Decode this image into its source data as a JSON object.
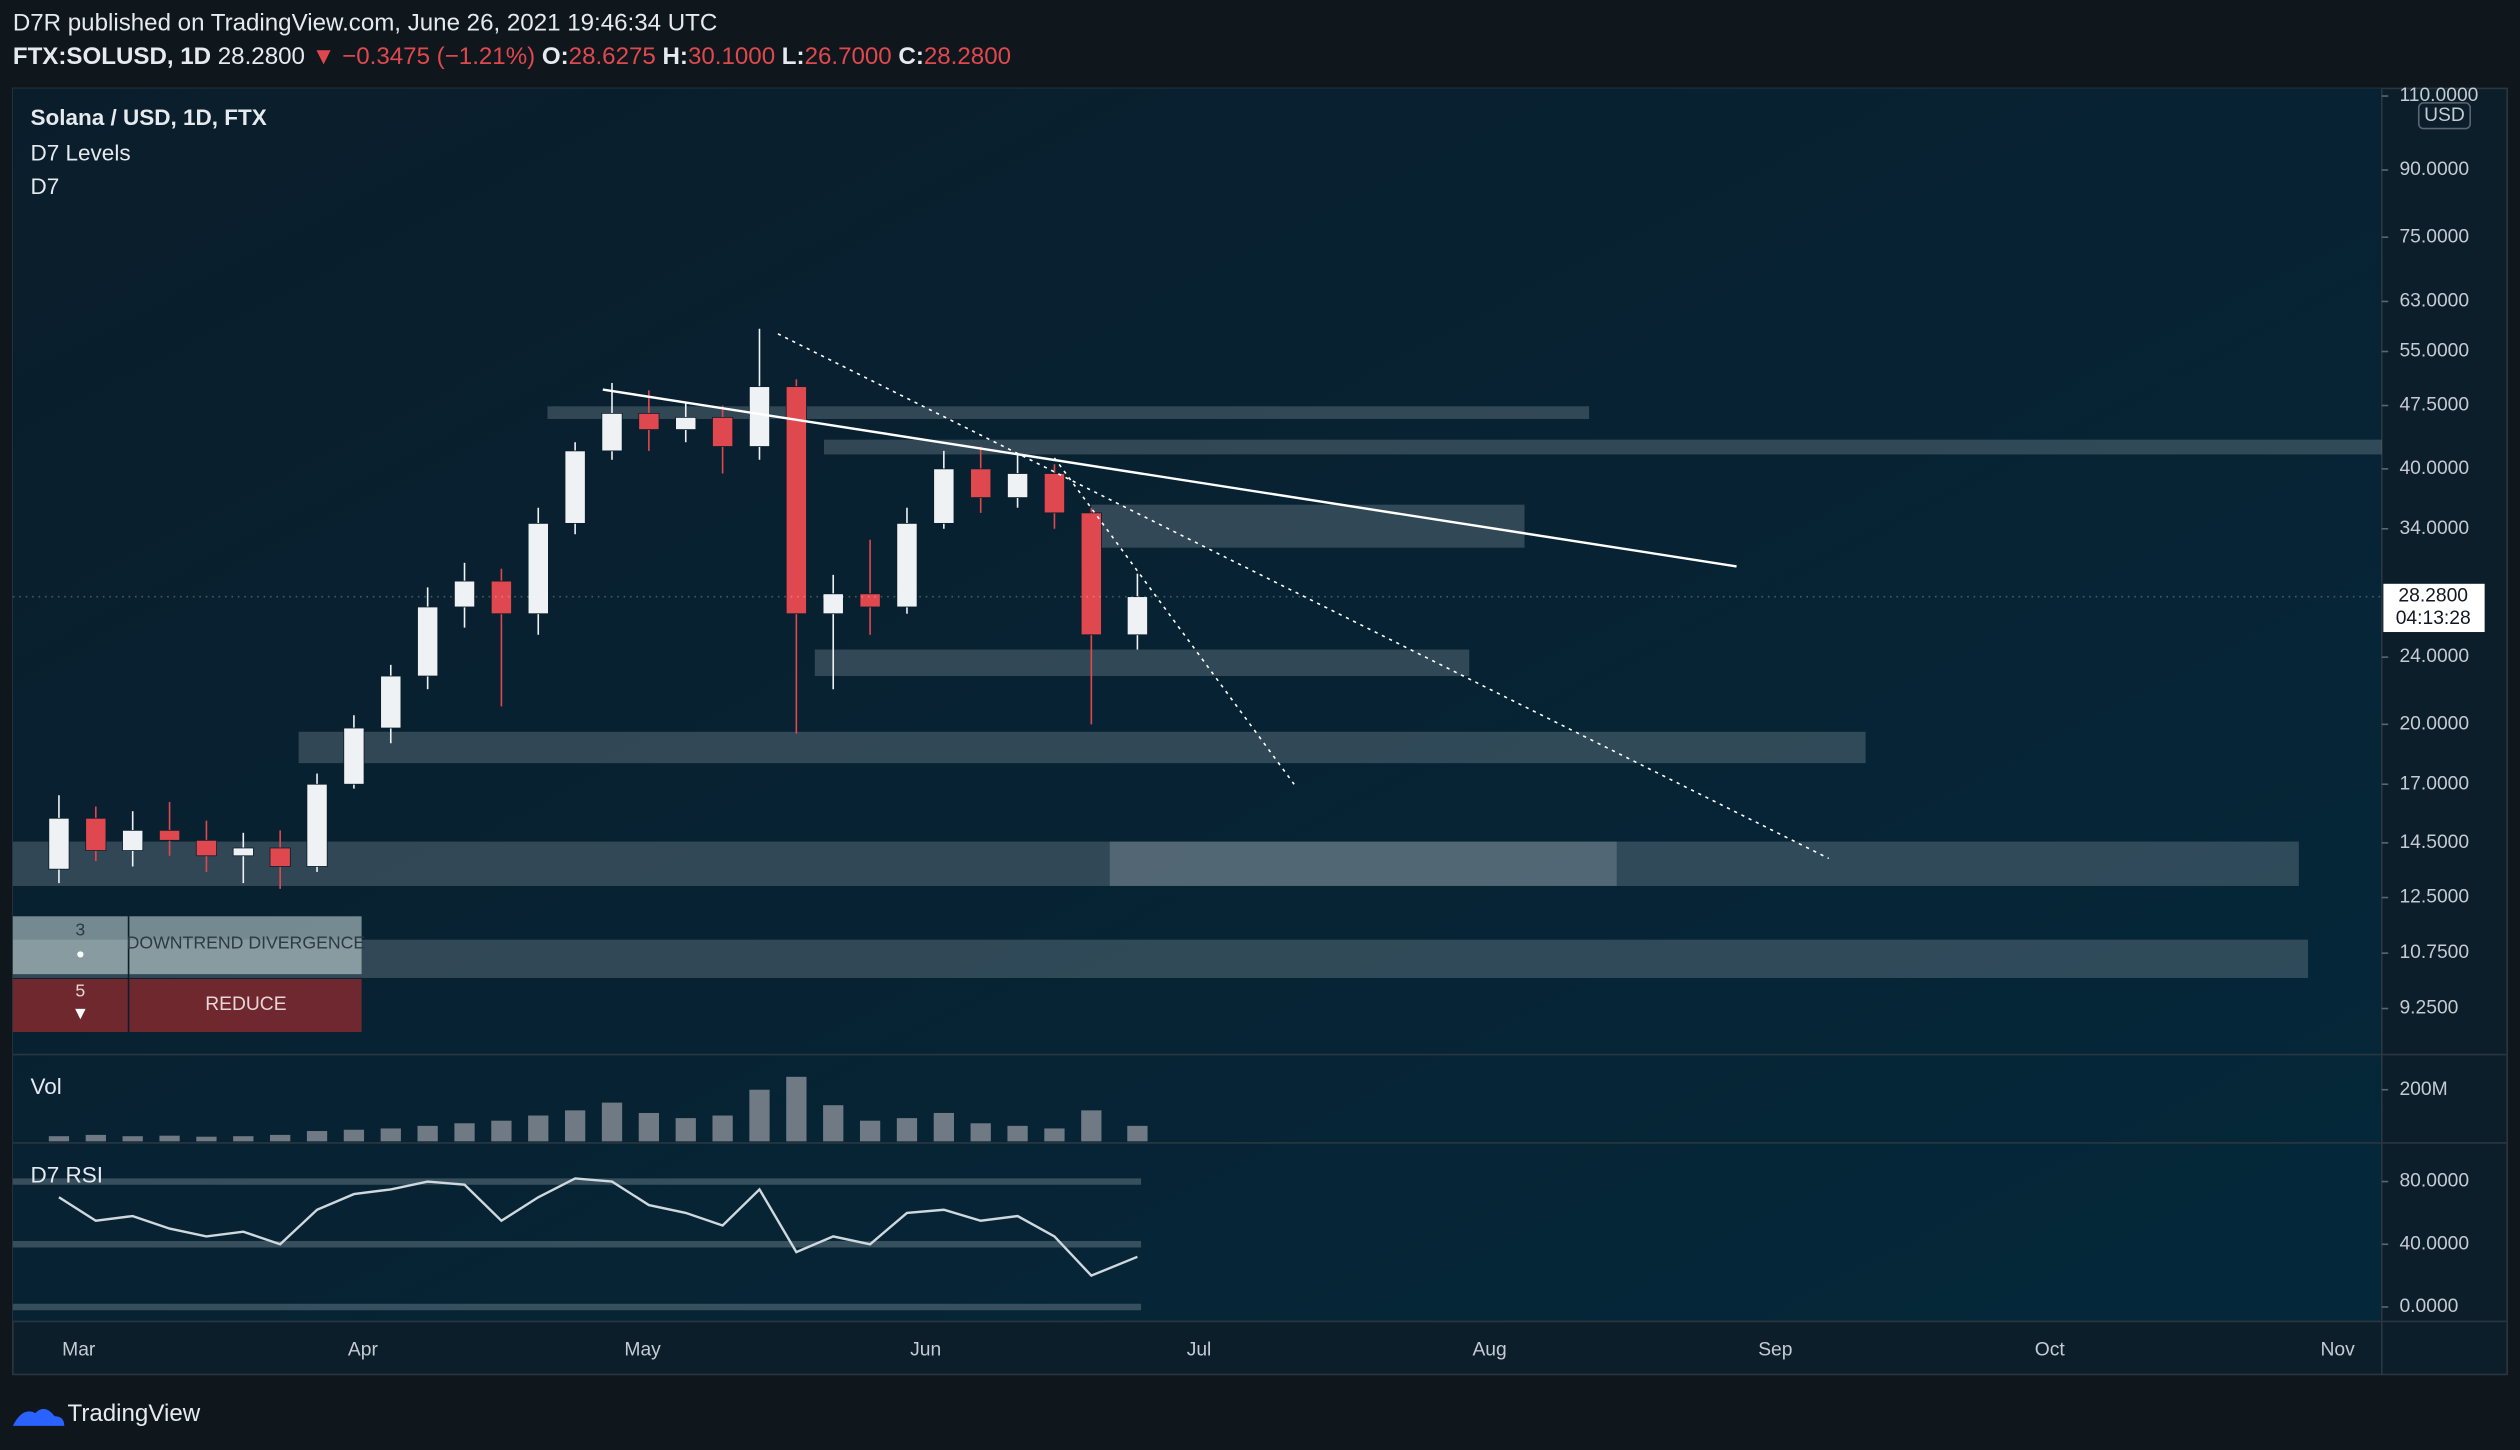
{
  "header": {
    "publisher": "D7R published on TradingView.com, June 26, 2021 19:46:34 UTC",
    "symbol": "FTX:SOLUSD, 1D",
    "last": "28.2800",
    "change": "▼ −0.3475 (−1.21%)",
    "o_label": "O:",
    "o": "28.6275",
    "h_label": "H:",
    "h": "30.1000",
    "l_label": "L:",
    "l": "26.7000",
    "c_label": "C:",
    "c": "28.2800"
  },
  "footer": {
    "brand": "TradingView"
  },
  "signals": [
    {
      "count": "3",
      "icon": "●",
      "text": "DOWNTREND DIVERGENCE"
    },
    {
      "count": "5",
      "icon": "▼",
      "text": "REDUCE"
    }
  ],
  "chart_data": [
    {
      "type": "candlestick",
      "title": "Solana / USD, 1D, FTX",
      "indicators": [
        "D7 Levels",
        "D7"
      ],
      "currency": "USD",
      "x": [
        "2021-03-01",
        "2021-03-05",
        "2021-03-09",
        "2021-03-13",
        "2021-03-17",
        "2021-03-21",
        "2021-03-25",
        "2021-03-29",
        "2021-04-02",
        "2021-04-06",
        "2021-04-10",
        "2021-04-14",
        "2021-04-18",
        "2021-04-22",
        "2021-04-26",
        "2021-04-30",
        "2021-05-04",
        "2021-05-08",
        "2021-05-12",
        "2021-05-16",
        "2021-05-20",
        "2021-05-24",
        "2021-05-28",
        "2021-06-01",
        "2021-06-05",
        "2021-06-09",
        "2021-06-13",
        "2021-06-17",
        "2021-06-21",
        "2021-06-26"
      ],
      "open": [
        13.5,
        15.5,
        14.2,
        15.0,
        14.6,
        14.0,
        14.3,
        13.6,
        17.0,
        19.8,
        22.8,
        27.5,
        29.5,
        27.0,
        34.5,
        42.0,
        46.5,
        44.5,
        46.0,
        42.5,
        50.0,
        27.0,
        28.5,
        27.5,
        34.5,
        40.0,
        37.0,
        39.5,
        35.5,
        25.5
      ],
      "high": [
        16.5,
        16.0,
        15.8,
        16.2,
        15.4,
        14.9,
        15.0,
        17.5,
        20.5,
        23.5,
        29.0,
        31.0,
        30.5,
        36.0,
        43.0,
        50.5,
        49.5,
        48.0,
        47.5,
        58.5,
        51.0,
        30.0,
        33.0,
        36.0,
        42.0,
        42.5,
        41.5,
        40.5,
        36.0,
        30.1
      ],
      "low": [
        13.0,
        13.8,
        13.6,
        14.0,
        13.4,
        13.0,
        12.8,
        13.4,
        16.8,
        19.0,
        22.0,
        26.0,
        21.0,
        25.5,
        33.5,
        41.0,
        42.0,
        43.0,
        39.5,
        41.0,
        19.5,
        22.0,
        25.5,
        27.0,
        34.0,
        35.5,
        36.0,
        34.0,
        20.0,
        24.5
      ],
      "close": [
        15.5,
        14.2,
        15.0,
        14.6,
        14.0,
        14.3,
        13.6,
        17.0,
        19.8,
        22.8,
        27.5,
        29.5,
        27.0,
        34.5,
        42.0,
        46.5,
        44.5,
        46.0,
        42.5,
        50.0,
        27.0,
        28.5,
        27.5,
        34.5,
        40.0,
        37.0,
        39.5,
        35.5,
        25.5,
        28.28
      ],
      "up_color": "#eef2f5",
      "down_color": "#e0484f",
      "log_scale": true,
      "ylim": [
        8.2,
        112.3
      ],
      "yticks": [
        {
          "value": 110,
          "label": "110.0000"
        },
        {
          "value": 90,
          "label": "90.0000"
        },
        {
          "value": 75,
          "label": "75.0000"
        },
        {
          "value": 63,
          "label": "63.0000"
        },
        {
          "value": 55,
          "label": "55.0000"
        },
        {
          "value": 47.5,
          "label": "47.5000"
        },
        {
          "value": 40,
          "label": "40.0000"
        },
        {
          "value": 34,
          "label": "34.0000"
        },
        {
          "value": 24,
          "label": "24.0000"
        },
        {
          "value": 20,
          "label": "20.0000"
        },
        {
          "value": 17,
          "label": "17.0000"
        },
        {
          "value": 14.5,
          "label": "14.5000"
        },
        {
          "value": 12.5,
          "label": "12.5000"
        },
        {
          "value": 10.75,
          "label": "10.7500"
        },
        {
          "value": 9.25,
          "label": "9.2500"
        }
      ],
      "xlim": [
        "2021-02-24",
        "2021-11-08"
      ],
      "xticks": [
        {
          "value": "2021-03-01",
          "label": "Mar"
        },
        {
          "value": "2021-04-01",
          "label": "Apr"
        },
        {
          "value": "2021-05-01",
          "label": "May"
        },
        {
          "value": "2021-06-01",
          "label": "Jun"
        },
        {
          "value": "2021-07-01",
          "label": "Jul"
        },
        {
          "value": "2021-08-01",
          "label": "Aug"
        },
        {
          "value": "2021-09-01",
          "label": "Sep"
        },
        {
          "value": "2021-10-01",
          "label": "Oct"
        },
        {
          "value": "2021-11-01",
          "label": "Nov"
        }
      ],
      "zones": [
        {
          "x": [
            "2021-04-23",
            "2021-08-14"
          ],
          "y": [
            45.8,
            47.4
          ]
        },
        {
          "x": [
            "2021-05-23",
            "2021-11-08"
          ],
          "y": [
            41.6,
            43.3
          ]
        },
        {
          "x": [
            "2021-06-21",
            "2021-08-07"
          ],
          "y": [
            32.3,
            36.3
          ]
        },
        {
          "x": [
            "2021-05-22",
            "2021-08-01"
          ],
          "y": [
            22.8,
            24.5
          ]
        },
        {
          "x": [
            "2021-03-27",
            "2021-09-13"
          ],
          "y": [
            18.0,
            19.6
          ]
        },
        {
          "x": [
            "2021-02-24",
            "2021-10-30"
          ],
          "y": [
            12.9,
            14.55
          ]
        },
        {
          "x": [
            "2021-06-23",
            "2021-08-17"
          ],
          "y": [
            12.9,
            14.55
          ]
        },
        {
          "x": [
            "2021-02-24",
            "2021-10-31"
          ],
          "y": [
            10.05,
            11.15
          ]
        }
      ],
      "zone_color": "#c8d2dc",
      "trendlines": [
        {
          "x": [
            "2021-04-29",
            "2021-08-30"
          ],
          "y": [
            49.6,
            30.7
          ],
          "style": "solid"
        },
        {
          "x": [
            "2021-05-18",
            "2021-09-09"
          ],
          "y": [
            57.7,
            13.9
          ],
          "style": "dotted"
        },
        {
          "x": [
            "2021-06-17",
            "2021-07-13"
          ],
          "y": [
            41.2,
            17.0
          ],
          "style": "dotted"
        }
      ],
      "price_label": {
        "value": 28.28,
        "label": "28.2800"
      },
      "countdown": "04:13:28"
    },
    {
      "type": "bar",
      "title": "Vol",
      "x": [
        "2021-03-01",
        "2021-03-05",
        "2021-03-09",
        "2021-03-13",
        "2021-03-17",
        "2021-03-21",
        "2021-03-25",
        "2021-03-29",
        "2021-04-02",
        "2021-04-06",
        "2021-04-10",
        "2021-04-14",
        "2021-04-18",
        "2021-04-22",
        "2021-04-26",
        "2021-04-30",
        "2021-05-04",
        "2021-05-08",
        "2021-05-12",
        "2021-05-16",
        "2021-05-20",
        "2021-05-24",
        "2021-05-28",
        "2021-06-01",
        "2021-06-05",
        "2021-06-09",
        "2021-06-13",
        "2021-06-17",
        "2021-06-21",
        "2021-06-26"
      ],
      "values": [
        20000000,
        25000000,
        20000000,
        22000000,
        18000000,
        20000000,
        25000000,
        40000000,
        45000000,
        50000000,
        60000000,
        70000000,
        80000000,
        100000000,
        120000000,
        150000000,
        110000000,
        90000000,
        100000000,
        200000000,
        250000000,
        140000000,
        80000000,
        90000000,
        110000000,
        70000000,
        60000000,
        50000000,
        120000000,
        60000000
      ],
      "color": "#8a9099",
      "ylim": [
        0,
        330000000
      ],
      "yticks": [
        {
          "value": 200000000,
          "label": "200M"
        }
      ]
    },
    {
      "type": "line",
      "title": "D7 RSI",
      "x": [
        "2021-03-01",
        "2021-03-05",
        "2021-03-09",
        "2021-03-13",
        "2021-03-17",
        "2021-03-21",
        "2021-03-25",
        "2021-03-29",
        "2021-04-02",
        "2021-04-06",
        "2021-04-10",
        "2021-04-14",
        "2021-04-18",
        "2021-04-22",
        "2021-04-26",
        "2021-04-30",
        "2021-05-04",
        "2021-05-08",
        "2021-05-12",
        "2021-05-16",
        "2021-05-20",
        "2021-05-24",
        "2021-05-28",
        "2021-06-01",
        "2021-06-05",
        "2021-06-09",
        "2021-06-13",
        "2021-06-17",
        "2021-06-21",
        "2021-06-26"
      ],
      "values": [
        70,
        55,
        58,
        50,
        45,
        48,
        40,
        62,
        72,
        75,
        80,
        78,
        55,
        70,
        82,
        80,
        65,
        60,
        52,
        75,
        35,
        45,
        40,
        60,
        62,
        55,
        58,
        45,
        20,
        32
      ],
      "color": "#cfd8dc",
      "ylim": [
        -9.2,
        103.6
      ],
      "yticks": [
        {
          "value": 80,
          "label": "80.0000"
        },
        {
          "value": 40,
          "label": "40.0000"
        },
        {
          "value": 0,
          "label": "0.0000"
        }
      ]
    }
  ]
}
